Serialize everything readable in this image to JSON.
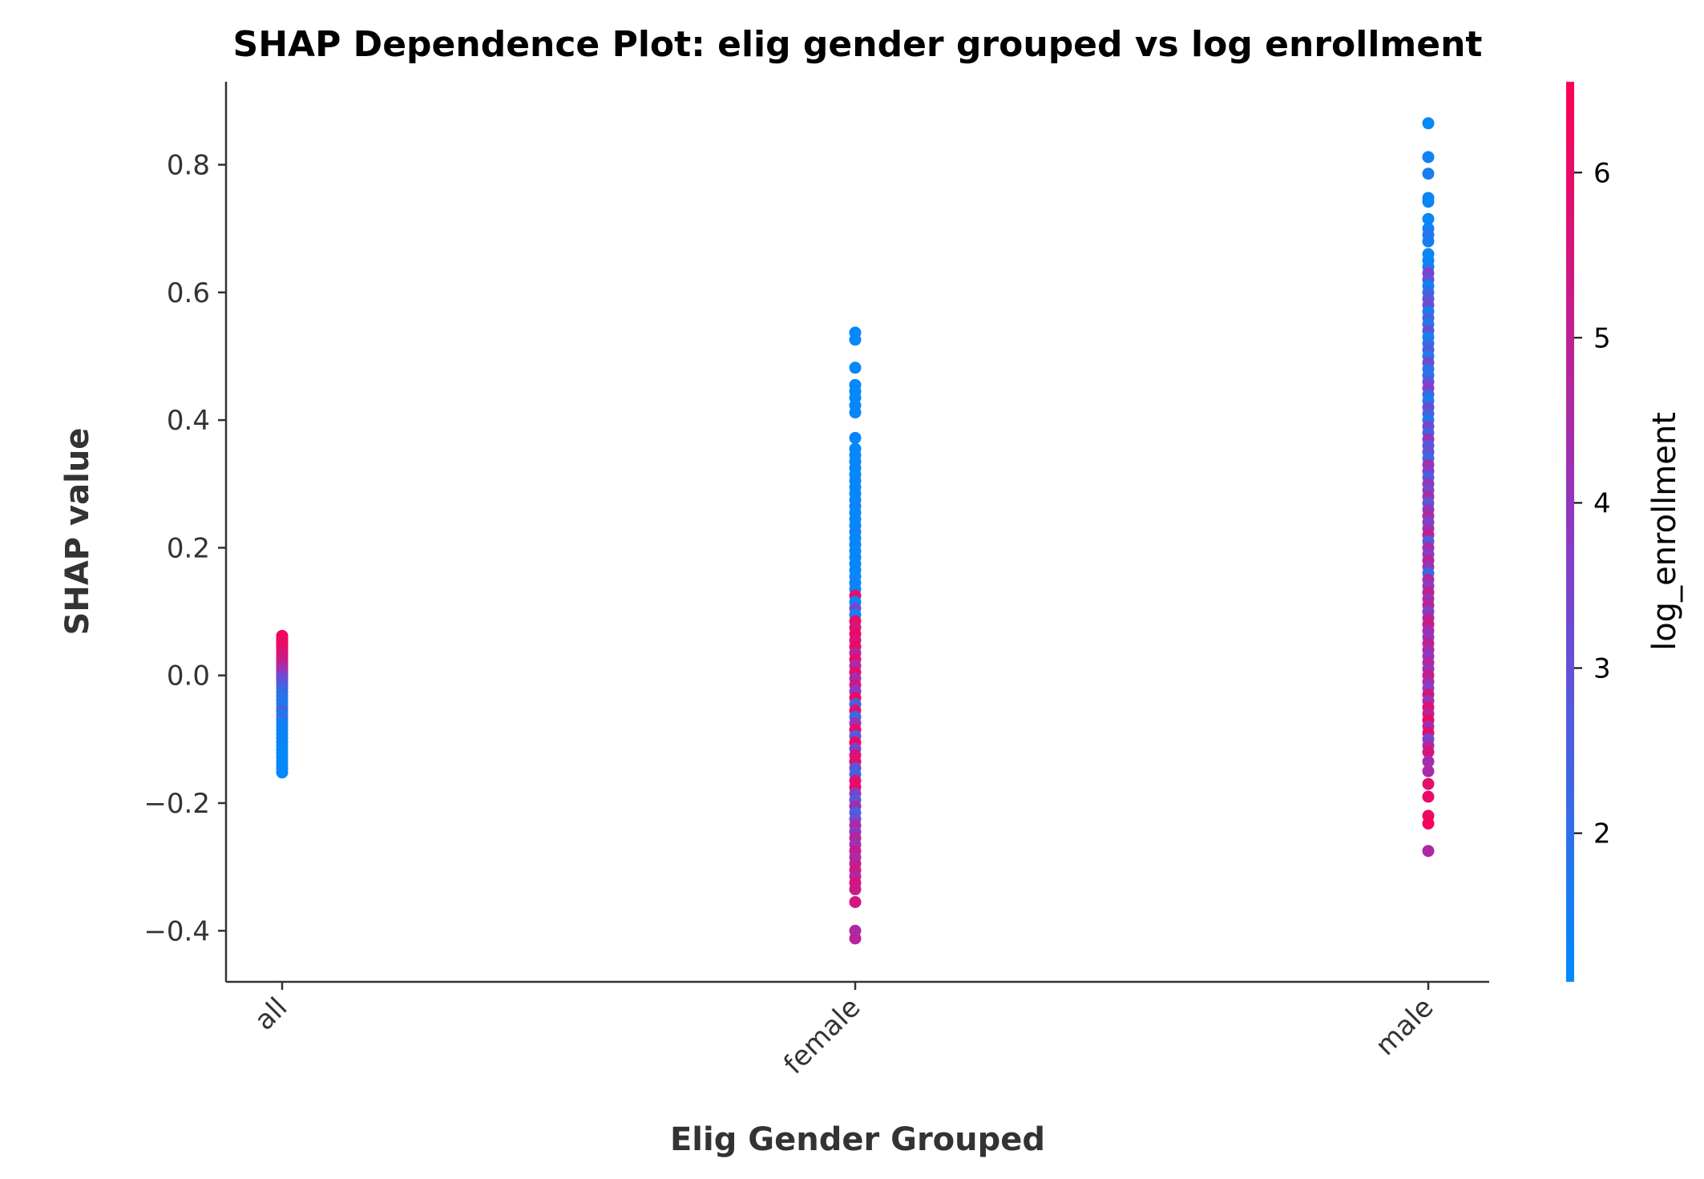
{
  "chart_data": {
    "type": "scatter",
    "title": "SHAP Dependence Plot: elig gender grouped vs log enrollment",
    "xlabel": "Elig Gender Grouped",
    "ylabel": "SHAP value",
    "categories": [
      "all",
      "female",
      "male"
    ],
    "ylim": [
      -0.48,
      0.93
    ],
    "yticks": [
      -0.4,
      -0.2,
      0.0,
      0.2,
      0.4,
      0.6,
      0.8
    ],
    "ytick_labels": [
      "−0.4",
      "−0.2",
      "0.0",
      "0.2",
      "0.4",
      "0.6",
      "0.8"
    ],
    "colorbar": {
      "label": "log_enrollment",
      "range": [
        1.1,
        6.55
      ],
      "ticks": [
        2,
        3,
        4,
        5,
        6
      ],
      "tick_labels": [
        "2",
        "3",
        "4",
        "5",
        "6"
      ],
      "low_color": "#008bfb",
      "mid_color": "#8d39c4",
      "high_color": "#ff0052"
    },
    "grid": false,
    "series": [
      {
        "category": "all",
        "points": [
          {
            "y": 0.062,
            "c": 6.3
          },
          {
            "y": 0.058,
            "c": 6.2
          },
          {
            "y": 0.055,
            "c": 6.4
          },
          {
            "y": 0.052,
            "c": 6.1
          },
          {
            "y": 0.048,
            "c": 6.0
          },
          {
            "y": 0.045,
            "c": 5.9
          },
          {
            "y": 0.042,
            "c": 6.2
          },
          {
            "y": 0.038,
            "c": 5.8
          },
          {
            "y": 0.034,
            "c": 5.7
          },
          {
            "y": 0.03,
            "c": 5.6
          },
          {
            "y": 0.026,
            "c": 5.5
          },
          {
            "y": 0.022,
            "c": 5.3
          },
          {
            "y": 0.018,
            "c": 5.1
          },
          {
            "y": 0.014,
            "c": 4.9
          },
          {
            "y": 0.01,
            "c": 4.6
          },
          {
            "y": 0.006,
            "c": 4.3
          },
          {
            "y": 0.002,
            "c": 4.0
          },
          {
            "y": -0.002,
            "c": 3.6
          },
          {
            "y": -0.006,
            "c": 3.3
          },
          {
            "y": -0.01,
            "c": 3.0
          },
          {
            "y": -0.015,
            "c": 2.8
          },
          {
            "y": -0.02,
            "c": 2.5
          },
          {
            "y": -0.026,
            "c": 2.2
          },
          {
            "y": -0.032,
            "c": 2.0
          },
          {
            "y": -0.038,
            "c": 1.9
          },
          {
            "y": -0.044,
            "c": 1.8
          },
          {
            "y": -0.05,
            "c": 1.7
          },
          {
            "y": -0.056,
            "c": 2.6
          },
          {
            "y": -0.062,
            "c": 1.6
          },
          {
            "y": -0.068,
            "c": 2.1
          },
          {
            "y": -0.074,
            "c": 1.5
          },
          {
            "y": -0.08,
            "c": 1.5
          },
          {
            "y": -0.086,
            "c": 1.4
          },
          {
            "y": -0.092,
            "c": 1.4
          },
          {
            "y": -0.098,
            "c": 1.3
          },
          {
            "y": -0.104,
            "c": 1.3
          },
          {
            "y": -0.11,
            "c": 1.3
          },
          {
            "y": -0.116,
            "c": 1.2
          },
          {
            "y": -0.122,
            "c": 1.2
          },
          {
            "y": -0.128,
            "c": 1.2
          },
          {
            "y": -0.134,
            "c": 1.2
          },
          {
            "y": -0.14,
            "c": 1.2
          },
          {
            "y": -0.146,
            "c": 1.2
          },
          {
            "y": -0.152,
            "c": 1.2
          }
        ]
      },
      {
        "category": "female",
        "points": [
          {
            "y": 0.537,
            "c": 1.2
          },
          {
            "y": 0.526,
            "c": 1.2
          },
          {
            "y": 0.482,
            "c": 1.2
          },
          {
            "y": 0.455,
            "c": 1.2
          },
          {
            "y": 0.445,
            "c": 1.2
          },
          {
            "y": 0.435,
            "c": 1.2
          },
          {
            "y": 0.423,
            "c": 1.2
          },
          {
            "y": 0.412,
            "c": 1.3
          },
          {
            "y": 0.372,
            "c": 1.3
          },
          {
            "y": 0.355,
            "c": 1.2
          },
          {
            "y": 0.345,
            "c": 1.3
          },
          {
            "y": 0.335,
            "c": 1.2
          },
          {
            "y": 0.325,
            "c": 1.3
          },
          {
            "y": 0.315,
            "c": 1.2
          },
          {
            "y": 0.305,
            "c": 1.3
          },
          {
            "y": 0.295,
            "c": 1.2
          },
          {
            "y": 0.285,
            "c": 1.3
          },
          {
            "y": 0.275,
            "c": 1.2
          },
          {
            "y": 0.265,
            "c": 1.4
          },
          {
            "y": 0.255,
            "c": 1.2
          },
          {
            "y": 0.245,
            "c": 1.3
          },
          {
            "y": 0.235,
            "c": 1.2
          },
          {
            "y": 0.225,
            "c": 1.4
          },
          {
            "y": 0.215,
            "c": 1.2
          },
          {
            "y": 0.205,
            "c": 1.3
          },
          {
            "y": 0.195,
            "c": 1.2
          },
          {
            "y": 0.185,
            "c": 1.3
          },
          {
            "y": 0.175,
            "c": 1.2
          },
          {
            "y": 0.165,
            "c": 1.3
          },
          {
            "y": 0.155,
            "c": 1.2
          },
          {
            "y": 0.145,
            "c": 1.4
          },
          {
            "y": 0.135,
            "c": 1.3
          },
          {
            "y": 0.125,
            "c": 5.8
          },
          {
            "y": 0.115,
            "c": 1.3
          },
          {
            "y": 0.105,
            "c": 3.2
          },
          {
            "y": 0.095,
            "c": 1.5
          },
          {
            "y": 0.085,
            "c": 6.0
          },
          {
            "y": 0.075,
            "c": 5.5
          },
          {
            "y": 0.065,
            "c": 6.2
          },
          {
            "y": 0.055,
            "c": 5.6
          },
          {
            "y": 0.045,
            "c": 6.1
          },
          {
            "y": 0.035,
            "c": 4.8
          },
          {
            "y": 0.025,
            "c": 5.9
          },
          {
            "y": 0.015,
            "c": 4.5
          },
          {
            "y": 0.005,
            "c": 6.0
          },
          {
            "y": -0.005,
            "c": 4.3
          },
          {
            "y": -0.015,
            "c": 5.4
          },
          {
            "y": -0.025,
            "c": 3.8
          },
          {
            "y": -0.035,
            "c": 6.1
          },
          {
            "y": -0.045,
            "c": 2.6
          },
          {
            "y": -0.055,
            "c": 5.7
          },
          {
            "y": -0.065,
            "c": 2.2
          },
          {
            "y": -0.075,
            "c": 4.2
          },
          {
            "y": -0.085,
            "c": 5.9
          },
          {
            "y": -0.095,
            "c": 2.8
          },
          {
            "y": -0.105,
            "c": 6.2
          },
          {
            "y": -0.115,
            "c": 3.4
          },
          {
            "y": -0.125,
            "c": 5.6
          },
          {
            "y": -0.135,
            "c": 6.0
          },
          {
            "y": -0.145,
            "c": 3.0
          },
          {
            "y": -0.155,
            "c": 2.4
          },
          {
            "y": -0.165,
            "c": 5.8
          },
          {
            "y": -0.175,
            "c": 6.1
          },
          {
            "y": -0.185,
            "c": 3.6
          },
          {
            "y": -0.195,
            "c": 2.9
          },
          {
            "y": -0.205,
            "c": 4.4
          },
          {
            "y": -0.215,
            "c": 2.5
          },
          {
            "y": -0.225,
            "c": 3.2
          },
          {
            "y": -0.235,
            "c": 4.6
          },
          {
            "y": -0.245,
            "c": 3.9
          },
          {
            "y": -0.255,
            "c": 4.9
          },
          {
            "y": -0.265,
            "c": 4.2
          },
          {
            "y": -0.275,
            "c": 5.2
          },
          {
            "y": -0.285,
            "c": 4.5
          },
          {
            "y": -0.295,
            "c": 5.0
          },
          {
            "y": -0.305,
            "c": 5.4
          },
          {
            "y": -0.315,
            "c": 4.7
          },
          {
            "y": -0.325,
            "c": 5.6
          },
          {
            "y": -0.335,
            "c": 5.3
          },
          {
            "y": -0.355,
            "c": 5.5
          },
          {
            "y": -0.4,
            "c": 4.6
          },
          {
            "y": -0.412,
            "c": 4.8
          }
        ]
      },
      {
        "category": "male",
        "points": [
          {
            "y": 0.865,
            "c": 1.2
          },
          {
            "y": 0.812,
            "c": 1.4
          },
          {
            "y": 0.786,
            "c": 1.6
          },
          {
            "y": 0.748,
            "c": 1.2
          },
          {
            "y": 0.742,
            "c": 1.3
          },
          {
            "y": 0.715,
            "c": 1.2
          },
          {
            "y": 0.7,
            "c": 1.4
          },
          {
            "y": 0.69,
            "c": 1.8
          },
          {
            "y": 0.68,
            "c": 1.6
          },
          {
            "y": 0.66,
            "c": 1.2
          },
          {
            "y": 0.65,
            "c": 1.3
          },
          {
            "y": 0.64,
            "c": 1.5
          },
          {
            "y": 0.63,
            "c": 3.6
          },
          {
            "y": 0.62,
            "c": 3.0
          },
          {
            "y": 0.61,
            "c": 1.4
          },
          {
            "y": 0.6,
            "c": 2.2
          },
          {
            "y": 0.59,
            "c": 2.8
          },
          {
            "y": 0.58,
            "c": 3.3
          },
          {
            "y": 0.57,
            "c": 1.6
          },
          {
            "y": 0.56,
            "c": 2.4
          },
          {
            "y": 0.55,
            "c": 1.8
          },
          {
            "y": 0.54,
            "c": 3.1
          },
          {
            "y": 0.53,
            "c": 1.5
          },
          {
            "y": 0.52,
            "c": 2.0
          },
          {
            "y": 0.51,
            "c": 2.7
          },
          {
            "y": 0.5,
            "c": 1.7
          },
          {
            "y": 0.49,
            "c": 3.4
          },
          {
            "y": 0.48,
            "c": 2.1
          },
          {
            "y": 0.47,
            "c": 1.9
          },
          {
            "y": 0.46,
            "c": 2.9
          },
          {
            "y": 0.45,
            "c": 3.8
          },
          {
            "y": 0.44,
            "c": 2.3
          },
          {
            "y": 0.43,
            "c": 1.6
          },
          {
            "y": 0.42,
            "c": 3.2
          },
          {
            "y": 0.41,
            "c": 2.6
          },
          {
            "y": 0.4,
            "c": 1.8
          },
          {
            "y": 0.39,
            "c": 3.5
          },
          {
            "y": 0.38,
            "c": 2.4
          },
          {
            "y": 0.37,
            "c": 4.1
          },
          {
            "y": 0.36,
            "c": 2.9
          },
          {
            "y": 0.35,
            "c": 3.0
          },
          {
            "y": 0.34,
            "c": 2.2
          },
          {
            "y": 0.33,
            "c": 4.3
          },
          {
            "y": 0.32,
            "c": 3.6
          },
          {
            "y": 0.31,
            "c": 2.5
          },
          {
            "y": 0.3,
            "c": 4.0
          },
          {
            "y": 0.29,
            "c": 3.3
          },
          {
            "y": 0.28,
            "c": 4.5
          },
          {
            "y": 0.27,
            "c": 2.8
          },
          {
            "y": 0.26,
            "c": 3.9
          },
          {
            "y": 0.25,
            "c": 4.7
          },
          {
            "y": 0.24,
            "c": 3.4
          },
          {
            "y": 0.23,
            "c": 4.2
          },
          {
            "y": 0.22,
            "c": 5.0
          },
          {
            "y": 0.21,
            "c": 2.6
          },
          {
            "y": 0.2,
            "c": 4.4
          },
          {
            "y": 0.19,
            "c": 3.7
          },
          {
            "y": 0.18,
            "c": 4.8
          },
          {
            "y": 0.17,
            "c": 4.1
          },
          {
            "y": 0.16,
            "c": 2.2
          },
          {
            "y": 0.15,
            "c": 4.6
          },
          {
            "y": 0.14,
            "c": 3.8
          },
          {
            "y": 0.13,
            "c": 5.1
          },
          {
            "y": 0.12,
            "c": 4.3
          },
          {
            "y": 0.11,
            "c": 4.9
          },
          {
            "y": 0.1,
            "c": 3.6
          },
          {
            "y": 0.09,
            "c": 4.7
          },
          {
            "y": 0.08,
            "c": 5.3
          },
          {
            "y": 0.07,
            "c": 4.4
          },
          {
            "y": 0.06,
            "c": 4.0
          },
          {
            "y": 0.05,
            "c": 5.0
          },
          {
            "y": 0.04,
            "c": 4.6
          },
          {
            "y": 0.03,
            "c": 3.9
          },
          {
            "y": 0.02,
            "c": 4.8
          },
          {
            "y": 0.01,
            "c": 4.2
          },
          {
            "y": 0.0,
            "c": 5.2
          },
          {
            "y": -0.01,
            "c": 4.5
          },
          {
            "y": -0.02,
            "c": 3.7
          },
          {
            "y": -0.03,
            "c": 5.5
          },
          {
            "y": -0.04,
            "c": 4.1
          },
          {
            "y": -0.05,
            "c": 5.8
          },
          {
            "y": -0.06,
            "c": 4.9
          },
          {
            "y": -0.07,
            "c": 6.0
          },
          {
            "y": -0.08,
            "c": 4.4
          },
          {
            "y": -0.09,
            "c": 5.9
          },
          {
            "y": -0.1,
            "c": 3.4
          },
          {
            "y": -0.11,
            "c": 4.6
          },
          {
            "y": -0.12,
            "c": 5.6
          },
          {
            "y": -0.135,
            "c": 4.3
          },
          {
            "y": -0.15,
            "c": 4.5
          },
          {
            "y": -0.17,
            "c": 5.9
          },
          {
            "y": -0.19,
            "c": 6.1
          },
          {
            "y": -0.22,
            "c": 6.2
          },
          {
            "y": -0.232,
            "c": 6.3
          },
          {
            "y": -0.275,
            "c": 4.6
          }
        ]
      }
    ]
  }
}
